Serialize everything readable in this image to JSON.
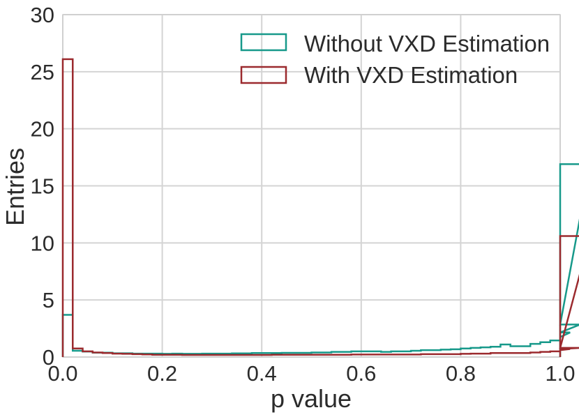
{
  "chart_data": {
    "type": "line",
    "title": "",
    "xlabel": "p value",
    "ylabel": "Entries",
    "xlim": [
      0.0,
      1.0
    ],
    "ylim": [
      0,
      30
    ],
    "xticks": [
      "0.0",
      "0.2",
      "0.4",
      "0.6",
      "0.8",
      "1.0"
    ],
    "yticks": [
      "0",
      "5",
      "10",
      "15",
      "20",
      "25",
      "30"
    ],
    "grid": true,
    "legend_position": "top-right",
    "bin_width": 0.02,
    "series": [
      {
        "name": "Without VXD Estimation",
        "color": "#17998a",
        "values": [
          3.7,
          0.55,
          0.48,
          0.38,
          0.38,
          0.33,
          0.33,
          0.3,
          0.3,
          0.3,
          0.28,
          0.3,
          0.28,
          0.28,
          0.3,
          0.3,
          0.3,
          0.32,
          0.32,
          0.35,
          0.35,
          0.35,
          0.37,
          0.37,
          0.37,
          0.4,
          0.4,
          0.45,
          0.45,
          0.5,
          0.5,
          0.5,
          0.45,
          0.5,
          0.5,
          0.55,
          0.6,
          0.6,
          0.65,
          0.68,
          0.75,
          0.8,
          0.85,
          0.9,
          1.1,
          0.95,
          0.95,
          1.15,
          1.3,
          1.45,
          1.75,
          2.15,
          2.85,
          16.9
        ]
      },
      {
        "name": "With VXD Estimation",
        "color": "#9b2a2e",
        "values": [
          26.1,
          0.75,
          0.5,
          0.4,
          0.35,
          0.3,
          0.28,
          0.25,
          0.23,
          0.2,
          0.2,
          0.2,
          0.18,
          0.18,
          0.18,
          0.18,
          0.18,
          0.18,
          0.18,
          0.18,
          0.18,
          0.2,
          0.2,
          0.2,
          0.2,
          0.2,
          0.2,
          0.2,
          0.2,
          0.22,
          0.22,
          0.22,
          0.22,
          0.22,
          0.22,
          0.22,
          0.25,
          0.25,
          0.25,
          0.25,
          0.28,
          0.3,
          0.3,
          0.35,
          0.35,
          0.35,
          0.35,
          0.4,
          0.45,
          0.5,
          0.6,
          0.7,
          0.8,
          10.6
        ]
      }
    ]
  }
}
